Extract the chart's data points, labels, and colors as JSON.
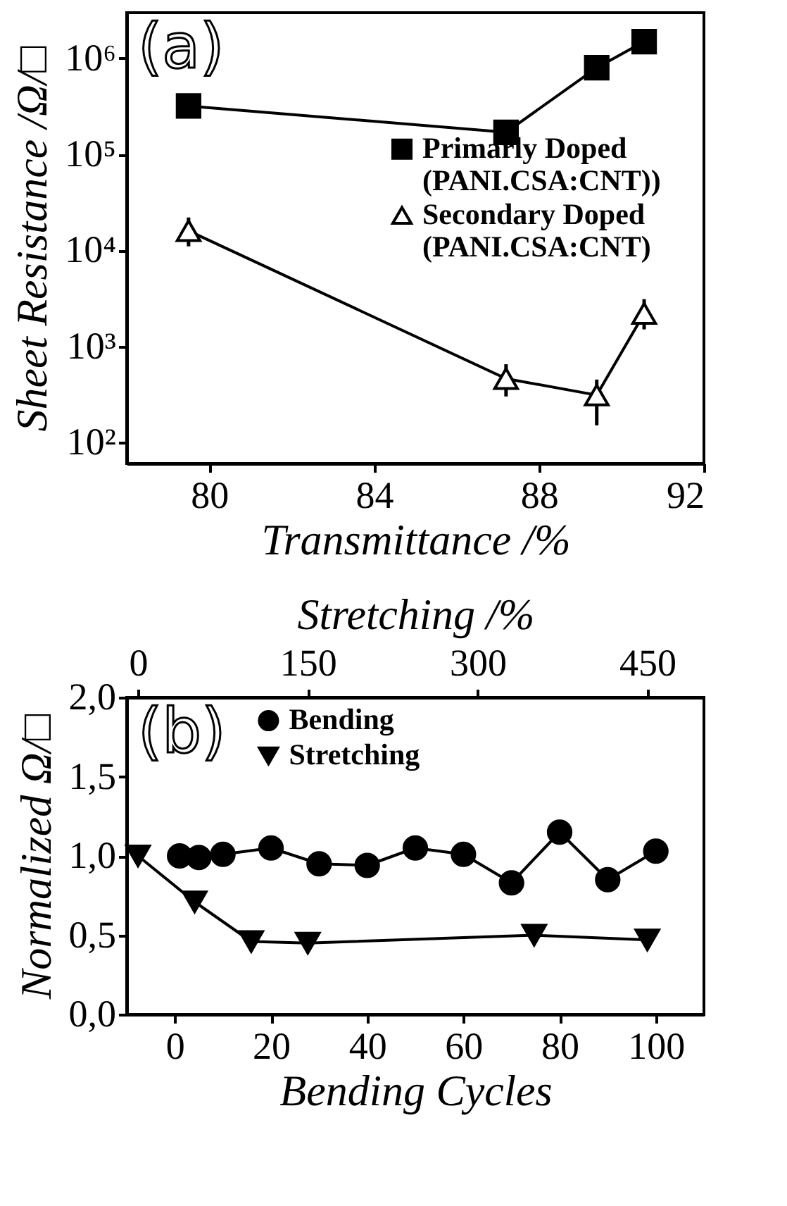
{
  "chart_data": [
    {
      "type": "line",
      "xlabel": "Transmittance /%",
      "ylabel": "Sheet Resistance /Ω/□",
      "annotations": [
        "(a)"
      ],
      "x": [
        79.5,
        87.2,
        89.4,
        90.55
      ],
      "xlim": [
        78,
        92
      ],
      "xticks": [
        80,
        84,
        88,
        92
      ],
      "log": true,
      "ylim": [
        60,
        3000000
      ],
      "yticks": [
        {
          "value": 100,
          "label": "10²"
        },
        {
          "value": 1000,
          "label": "10³"
        },
        {
          "value": 10000,
          "label": "10⁴"
        },
        {
          "value": 100000,
          "label": "10⁵"
        },
        {
          "value": 1000000,
          "label": "10⁶"
        }
      ],
      "legend": "right",
      "grid": false,
      "series": [
        {
          "name": "Primarly Doped (PANI.CSA:CNT))",
          "color": "#000000",
          "marker": "square",
          "values": [
            320000,
            170000,
            800000,
            1500000
          ]
        },
        {
          "name": "Secondary Doped (PANI.CSA:CNT)",
          "color": "#000000",
          "marker": "triangle",
          "values": [
            16000,
            460,
            310,
            2200
          ],
          "errors": [
            [
              11000,
              22000
            ],
            [
              300,
              650
            ],
            [
              150,
              450
            ],
            [
              1500,
              3100
            ]
          ]
        }
      ]
    },
    {
      "type": "line",
      "xlabel": "Bending Cycles",
      "x2label": "Stretching /%",
      "ylabel": "Normalized Ω/□",
      "annotations": [
        "(b)"
      ],
      "xlim": [
        -10,
        110
      ],
      "xticks": [
        0,
        20,
        40,
        60,
        80,
        100
      ],
      "x2lim": [
        -10,
        500
      ],
      "x2ticks": [
        0,
        150,
        300,
        450
      ],
      "ylim": [
        0,
        2
      ],
      "yticks": [
        {
          "value": 0,
          "label": "0,0"
        },
        {
          "value": 0.5,
          "label": "0,5"
        },
        {
          "value": 1,
          "label": "1,0"
        },
        {
          "value": 1.5,
          "label": "1,5"
        },
        {
          "value": 2,
          "label": "2,0"
        }
      ],
      "legend": "top",
      "grid": false,
      "series": [
        {
          "name": "Bending",
          "color": "#000000",
          "marker": "circle",
          "x": [
            1,
            5,
            10,
            20,
            30,
            40,
            50,
            60,
            70,
            80,
            90,
            100
          ],
          "values": [
            1.0,
            0.99,
            1.01,
            1.05,
            0.95,
            0.94,
            1.05,
            1.01,
            0.83,
            1.15,
            0.85,
            1.03
          ]
        },
        {
          "name": "Stretching",
          "color": "#000000",
          "marker": "triangle-down",
          "axis": "x2",
          "x": [
            0,
            50,
            100,
            150,
            350,
            450
          ],
          "values": [
            1.0,
            0.71,
            0.46,
            0.45,
            0.5,
            0.47
          ]
        }
      ]
    }
  ]
}
